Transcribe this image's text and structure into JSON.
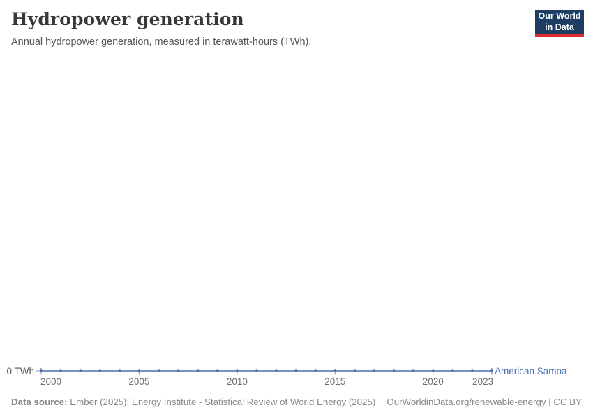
{
  "header": {
    "logo": {
      "line1": "Our World",
      "line2": "in Data"
    }
  },
  "chart_data": {
    "type": "line",
    "title": "Hydropower generation",
    "subtitle": "Annual hydropower generation, measured in terawatt-hours (TWh).",
    "unit": "TWh",
    "x": [
      2000,
      2001,
      2002,
      2003,
      2004,
      2005,
      2006,
      2007,
      2008,
      2009,
      2010,
      2011,
      2012,
      2013,
      2014,
      2015,
      2016,
      2017,
      2018,
      2019,
      2020,
      2021,
      2022,
      2023
    ],
    "x_ticks": [
      2000,
      2005,
      2010,
      2015,
      2020,
      2023
    ],
    "y_axis": {
      "tick_label": "0 TWh",
      "min": 0,
      "max": 0
    },
    "series": [
      {
        "name": "American Samoa",
        "color": "#4C6FB1",
        "values": [
          0,
          0,
          0,
          0,
          0,
          0,
          0,
          0,
          0,
          0,
          0,
          0,
          0,
          0,
          0,
          0,
          0,
          0,
          0,
          0,
          0,
          0,
          0,
          0
        ]
      }
    ],
    "grid": false,
    "legend": "entity-label-at-line-end",
    "markers": true
  },
  "footer": {
    "source_label": "Data source:",
    "source_text": "Ember (2025); Energy Institute - Statistical Review of World Energy (2025)",
    "link_text": "OurWorldinData.org/renewable-energy | CC BY"
  },
  "colors": {
    "line": "#4C6FB1",
    "logo_bg": "#1D3D63",
    "logo_accent": "#E02B35",
    "axis_text": "#6E6E6E",
    "tick": "#8B94A8"
  }
}
